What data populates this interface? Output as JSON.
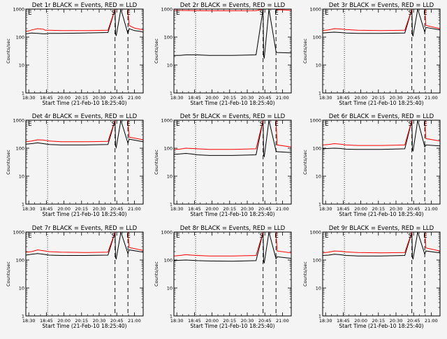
{
  "layout": {
    "rows": 3,
    "cols": 3
  },
  "common": {
    "xlabel": "Start Time (21-Feb-10 18:25:40)",
    "ylabel": "Counts/sec",
    "xticks": [
      "18:30",
      "18:45",
      "20:00",
      "20:15",
      "20:30",
      "20:45",
      "21:00"
    ],
    "yticks": [
      "1",
      "10",
      "100",
      "1000"
    ],
    "ylim": [
      1,
      1000
    ],
    "ylog": true,
    "event_labels": {
      "S": "S",
      "E": "E"
    },
    "colors": {
      "events": "#000000",
      "lld": "#ff0000",
      "background": "#f4f4f4"
    }
  },
  "chart_data": [
    {
      "type": "line",
      "title": "Det 1r BLACK = Events, RED = LLD",
      "series": [
        {
          "color": "#000000",
          "x": [
            0,
            0.5,
            1,
            2,
            3,
            3.3,
            4,
            6,
            10,
            14,
            15.2,
            15.3,
            15.4,
            16.2,
            17.4,
            17.6,
            18.5,
            19.4,
            20
          ],
          "y": [
            130,
            135,
            140,
            135,
            130,
            130,
            135,
            135,
            140,
            145,
            1000,
            130,
            110,
            1000,
            130,
            200,
            170,
            160,
            150
          ]
        },
        {
          "color": "#ff0000",
          "x": [
            0,
            0.5,
            1,
            2,
            3,
            3.3,
            4,
            6,
            10,
            14,
            15.2,
            15.3,
            15.4,
            16.2,
            17.4,
            17.6,
            18.5,
            19.4,
            20
          ],
          "y": [
            160,
            165,
            180,
            200,
            190,
            175,
            175,
            170,
            170,
            175,
            1000,
            1000,
            1000,
            1000,
            1000,
            260,
            210,
            190,
            180
          ]
        }
      ]
    },
    {
      "type": "line",
      "title": "Det 2r BLACK = Events, RED = LLD",
      "series": [
        {
          "color": "#000000",
          "x": [
            0,
            1,
            2,
            3,
            4,
            6,
            10,
            14,
            15.2,
            15.3,
            15.4,
            16.2,
            17.4,
            17.6,
            20
          ],
          "y": [
            22,
            22,
            23,
            23,
            23,
            22,
            22,
            23,
            1000,
            20,
            18,
            1000,
            30,
            28,
            27
          ]
        },
        {
          "color": "#ff0000",
          "x": [
            0,
            2,
            4,
            6,
            10,
            14,
            15.2,
            16.2,
            17.4,
            17.6,
            20
          ],
          "y": [
            900,
            890,
            880,
            870,
            870,
            880,
            1000,
            1000,
            1000,
            950,
            900
          ]
        }
      ]
    },
    {
      "type": "line",
      "title": "Det 3r BLACK = Events, RED = LLD",
      "series": [
        {
          "color": "#000000",
          "x": [
            0,
            1,
            2,
            3,
            4,
            6,
            10,
            14,
            15.2,
            15.3,
            15.4,
            16.2,
            17.4,
            17.6,
            20
          ],
          "y": [
            140,
            145,
            150,
            145,
            140,
            135,
            135,
            140,
            1000,
            120,
            110,
            1000,
            150,
            220,
            180
          ]
        },
        {
          "color": "#ff0000",
          "x": [
            0,
            1,
            2,
            3,
            4,
            6,
            10,
            14,
            15.2,
            16.2,
            17.4,
            17.6,
            20
          ],
          "y": [
            170,
            180,
            200,
            195,
            185,
            175,
            170,
            175,
            1000,
            1000,
            1000,
            260,
            200
          ]
        }
      ]
    },
    {
      "type": "line",
      "title": "Det 4r BLACK = Events, RED = LLD",
      "series": [
        {
          "color": "#000000",
          "x": [
            0,
            1,
            2,
            3,
            4,
            6,
            10,
            14,
            15.2,
            15.3,
            15.4,
            16.2,
            17.4,
            17.6,
            20
          ],
          "y": [
            140,
            145,
            155,
            145,
            135,
            130,
            130,
            135,
            1000,
            120,
            105,
            1000,
            150,
            210,
            170
          ]
        },
        {
          "color": "#ff0000",
          "x": [
            0,
            1,
            2,
            3,
            4,
            6,
            10,
            14,
            15.2,
            16.2,
            17.4,
            17.6,
            20
          ],
          "y": [
            170,
            180,
            200,
            195,
            180,
            170,
            170,
            175,
            1000,
            1000,
            1000,
            250,
            200
          ]
        }
      ]
    },
    {
      "type": "line",
      "title": "Det 5r BLACK = Events, RED = LLD",
      "series": [
        {
          "color": "#000000",
          "x": [
            0,
            1,
            2,
            3,
            4,
            6,
            10,
            14,
            15.2,
            15.3,
            15.4,
            16.2,
            17.4,
            17.6,
            20
          ],
          "y": [
            60,
            62,
            65,
            62,
            58,
            55,
            55,
            58,
            1000,
            55,
            50,
            1000,
            80,
            75,
            70
          ]
        },
        {
          "color": "#ff0000",
          "x": [
            0,
            1,
            2,
            3,
            4,
            6,
            10,
            14,
            15.2,
            16.2,
            17.4,
            17.6,
            20
          ],
          "y": [
            90,
            92,
            100,
            98,
            95,
            90,
            90,
            95,
            1000,
            1000,
            1000,
            130,
            110
          ]
        }
      ]
    },
    {
      "type": "line",
      "title": "Det 6r BLACK = Events, RED = LLD",
      "series": [
        {
          "color": "#000000",
          "x": [
            0,
            1,
            2,
            3,
            4,
            6,
            10,
            14,
            15.2,
            15.3,
            15.4,
            16.2,
            17.4,
            17.6,
            20
          ],
          "y": [
            95,
            98,
            100,
            98,
            92,
            90,
            90,
            95,
            1000,
            85,
            80,
            1000,
            110,
            130,
            120
          ]
        },
        {
          "color": "#ff0000",
          "x": [
            0,
            1,
            2,
            3,
            4,
            6,
            10,
            14,
            15.2,
            16.2,
            17.4,
            17.6,
            20
          ],
          "y": [
            130,
            135,
            145,
            140,
            130,
            125,
            125,
            130,
            1000,
            1000,
            1000,
            220,
            180
          ]
        }
      ]
    },
    {
      "type": "line",
      "title": "Det 7r BLACK = Events, RED = LLD",
      "series": [
        {
          "color": "#000000",
          "x": [
            0,
            1,
            2,
            3,
            4,
            6,
            10,
            14,
            15.2,
            15.3,
            15.4,
            16.2,
            17.4,
            17.6,
            20
          ],
          "y": [
            150,
            160,
            170,
            160,
            150,
            145,
            145,
            150,
            1000,
            120,
            110,
            1000,
            170,
            230,
            190
          ]
        },
        {
          "color": "#ff0000",
          "x": [
            0,
            1,
            2,
            3,
            4,
            6,
            10,
            14,
            15.2,
            16.2,
            17.4,
            17.6,
            20
          ],
          "y": [
            190,
            200,
            230,
            215,
            200,
            190,
            185,
            190,
            1000,
            1000,
            1000,
            280,
            220
          ]
        }
      ]
    },
    {
      "type": "line",
      "title": "Det 8r BLACK = Events, RED = LLD",
      "series": [
        {
          "color": "#000000",
          "x": [
            0,
            1,
            2,
            3,
            4,
            6,
            10,
            14,
            15.2,
            15.3,
            15.4,
            16.2,
            17.4,
            17.6,
            20
          ],
          "y": [
            95,
            98,
            100,
            98,
            95,
            92,
            90,
            95,
            1000,
            85,
            80,
            1000,
            110,
            130,
            115
          ]
        },
        {
          "color": "#ff0000",
          "x": [
            0,
            1,
            2,
            3,
            4,
            6,
            10,
            14,
            15.2,
            16.2,
            17.4,
            17.6,
            20
          ],
          "y": [
            140,
            145,
            155,
            150,
            145,
            140,
            140,
            145,
            1000,
            1000,
            1000,
            210,
            180
          ]
        }
      ]
    },
    {
      "type": "line",
      "title": "Det 9r BLACK = Events, RED = LLD",
      "series": [
        {
          "color": "#000000",
          "x": [
            0,
            1,
            2,
            3,
            4,
            6,
            10,
            14,
            15.2,
            15.3,
            15.4,
            16.2,
            17.4,
            17.6,
            20
          ],
          "y": [
            145,
            150,
            160,
            155,
            145,
            140,
            140,
            145,
            1000,
            120,
            110,
            1000,
            160,
            210,
            180
          ]
        },
        {
          "color": "#ff0000",
          "x": [
            0,
            1,
            2,
            3,
            4,
            6,
            10,
            14,
            15.2,
            16.2,
            17.4,
            17.6,
            20
          ],
          "y": [
            180,
            190,
            210,
            205,
            195,
            185,
            180,
            185,
            1000,
            1000,
            1000,
            270,
            210
          ]
        }
      ]
    }
  ]
}
